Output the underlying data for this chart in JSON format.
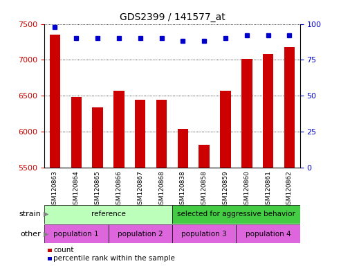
{
  "title": "GDS2399 / 141577_at",
  "samples": [
    "GSM120863",
    "GSM120864",
    "GSM120865",
    "GSM120866",
    "GSM120867",
    "GSM120868",
    "GSM120838",
    "GSM120858",
    "GSM120859",
    "GSM120860",
    "GSM120861",
    "GSM120862"
  ],
  "counts": [
    7350,
    6480,
    6340,
    6570,
    6445,
    6445,
    6040,
    5820,
    6570,
    7010,
    7080,
    7180
  ],
  "percentile_ranks": [
    98,
    90,
    90,
    90,
    90,
    90,
    88,
    88,
    90,
    92,
    92,
    92
  ],
  "ylim_left": [
    5500,
    7500
  ],
  "ylim_right": [
    0,
    100
  ],
  "yticks_left": [
    5500,
    6000,
    6500,
    7000,
    7500
  ],
  "yticks_right": [
    0,
    25,
    50,
    75,
    100
  ],
  "bar_color": "#cc0000",
  "dot_color": "#0000cc",
  "strain_ref_color": "#bbffbb",
  "strain_sel_color": "#44cc44",
  "other_color": "#dd66dd",
  "strain_labels": [
    {
      "text": "reference",
      "start": 0,
      "end": 6,
      "color_key": "strain_ref_color"
    },
    {
      "text": "selected for aggressive behavior",
      "start": 6,
      "end": 12,
      "color_key": "strain_sel_color"
    }
  ],
  "other_labels": [
    {
      "text": "population 1",
      "start": 0,
      "end": 3
    },
    {
      "text": "population 2",
      "start": 3,
      "end": 6
    },
    {
      "text": "population 3",
      "start": 6,
      "end": 9
    },
    {
      "text": "population 4",
      "start": 9,
      "end": 12
    }
  ],
  "legend_count_color": "#cc0000",
  "legend_dot_color": "#0000cc",
  "tick_label_color_left": "#cc0000",
  "tick_label_color_right": "#0000cc",
  "plot_bg_color": "#ffffff",
  "xtick_bg_color": "#cccccc"
}
